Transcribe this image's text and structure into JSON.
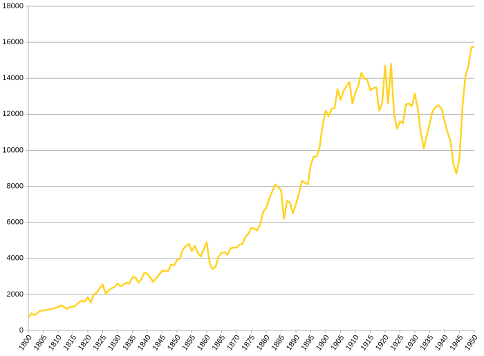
{
  "chart_data": {
    "type": "line",
    "color": "#ffd320",
    "grid": true,
    "xlim": [
      1800,
      1950
    ],
    "xticks": [
      1800,
      1805,
      1810,
      1815,
      1820,
      1825,
      1830,
      1835,
      1840,
      1845,
      1850,
      1855,
      1860,
      1865,
      1870,
      1875,
      1880,
      1885,
      1890,
      1895,
      1900,
      1905,
      1910,
      1915,
      1920,
      1925,
      1930,
      1935,
      1940,
      1945,
      1950
    ],
    "ylim": [
      0,
      18000
    ],
    "yticks": [
      0,
      2000,
      4000,
      6000,
      8000,
      10000,
      12000,
      14000,
      16000,
      18000
    ],
    "x": [
      1800,
      1801,
      1802,
      1803,
      1804,
      1805,
      1806,
      1807,
      1808,
      1809,
      1810,
      1811,
      1812,
      1813,
      1814,
      1815,
      1816,
      1817,
      1818,
      1819,
      1820,
      1821,
      1822,
      1823,
      1824,
      1825,
      1826,
      1827,
      1828,
      1829,
      1830,
      1831,
      1832,
      1833,
      1834,
      1835,
      1836,
      1837,
      1838,
      1839,
      1840,
      1841,
      1842,
      1843,
      1844,
      1845,
      1846,
      1847,
      1848,
      1849,
      1850,
      1851,
      1852,
      1853,
      1854,
      1855,
      1856,
      1857,
      1858,
      1859,
      1860,
      1861,
      1862,
      1863,
      1864,
      1865,
      1866,
      1867,
      1868,
      1869,
      1870,
      1871,
      1872,
      1873,
      1874,
      1875,
      1876,
      1877,
      1878,
      1879,
      1880,
      1881,
      1882,
      1883,
      1884,
      1885,
      1886,
      1887,
      1888,
      1889,
      1890,
      1891,
      1892,
      1893,
      1894,
      1895,
      1896,
      1897,
      1898,
      1899,
      1900,
      1901,
      1902,
      1903,
      1904,
      1905,
      1906,
      1907,
      1908,
      1909,
      1910,
      1911,
      1912,
      1913,
      1914,
      1915,
      1916,
      1917,
      1918,
      1919,
      1920,
      1921,
      1922,
      1923,
      1924,
      1925,
      1926,
      1927,
      1928,
      1929,
      1930,
      1931,
      1932,
      1933,
      1934,
      1935,
      1936,
      1937,
      1938,
      1939,
      1940,
      1941,
      1942,
      1943,
      1944,
      1945,
      1946,
      1947,
      1948,
      1949,
      1950
    ],
    "values": [
      700,
      950,
      850,
      950,
      1100,
      1100,
      1150,
      1150,
      1200,
      1250,
      1300,
      1400,
      1300,
      1200,
      1300,
      1300,
      1400,
      1550,
      1650,
      1600,
      1850,
      1550,
      2000,
      2100,
      2350,
      2550,
      2050,
      2200,
      2350,
      2400,
      2600,
      2450,
      2550,
      2650,
      2600,
      2950,
      2950,
      2650,
      2850,
      3200,
      3150,
      2950,
      2700,
      2900,
      3100,
      3300,
      3300,
      3300,
      3650,
      3600,
      3900,
      4000,
      4500,
      4700,
      4800,
      4400,
      4700,
      4300,
      4100,
      4500,
      4900,
      3700,
      3400,
      3550,
      4100,
      4300,
      4350,
      4200,
      4550,
      4600,
      4600,
      4750,
      4800,
      5200,
      5350,
      5700,
      5650,
      5550,
      5900,
      6600,
      6800,
      7300,
      7700,
      8100,
      7950,
      7800,
      6200,
      7200,
      7100,
      6500,
      7000,
      7600,
      8300,
      8200,
      8100,
      9200,
      9650,
      9650,
      10200,
      11400,
      12200,
      11900,
      12300,
      12350,
      13400,
      12800,
      13300,
      13550,
      13800,
      12600,
      13200,
      13600,
      14300,
      14000,
      13900,
      13350,
      13450,
      13500,
      12200,
      12600,
      14700,
      12600,
      14800,
      12000,
      11200,
      11600,
      11500,
      12550,
      12600,
      12450,
      13150,
      12300,
      11000,
      10100,
      10800,
      11500,
      12200,
      12400,
      12500,
      12300,
      11600,
      11000,
      10500,
      9200,
      8700,
      9600,
      12400,
      14100,
      14700,
      15700,
      15750
    ]
  }
}
